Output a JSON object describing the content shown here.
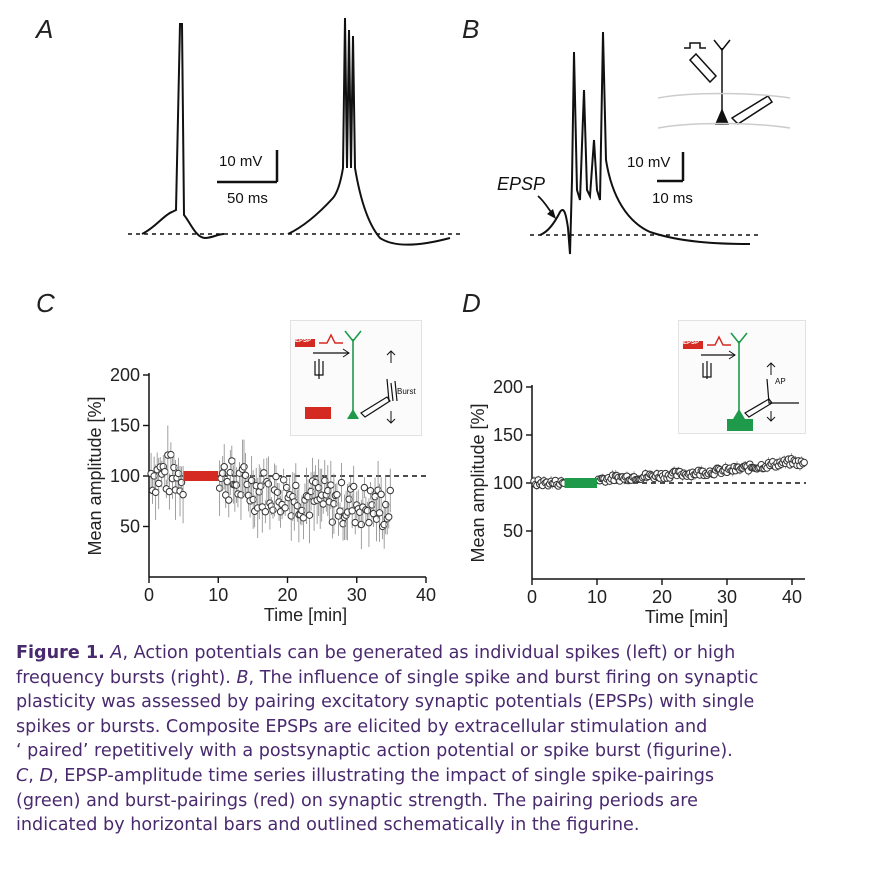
{
  "panels": {
    "A": {
      "letter": "A",
      "scale_v": "10 mV",
      "scale_t": "50 ms"
    },
    "B": {
      "letter": "B",
      "scale_v": "10 mV",
      "scale_t": "10 ms",
      "epsp_label": "EPSP"
    },
    "C": {
      "letter": "C",
      "figurine_label": "Burst",
      "figurine_epsp": "EPSP"
    },
    "D": {
      "letter": "D",
      "figurine_label": "AP",
      "figurine_epsp": "EPSP"
    }
  },
  "colors": {
    "burst_pairing": "#d42a22",
    "spike_pairing": "#1f9a4a",
    "caption_text": "#4a2a6e",
    "trace": "#111111"
  },
  "chart_data": [
    {
      "panel": "C",
      "type": "scatter",
      "xlabel": "Time [min]",
      "ylabel": "Mean amplitude [%]",
      "xlim": [
        0,
        40
      ],
      "ylim": [
        0,
        200
      ],
      "xticks": [
        0,
        10,
        20,
        30,
        40
      ],
      "yticks": [
        50,
        100,
        150,
        200
      ],
      "baseline": 100,
      "pairing_period": [
        5,
        10
      ],
      "pairing_label": "burst-pairing",
      "series_trend": {
        "x": [
          0,
          5,
          10,
          15,
          20,
          25,
          30,
          35
        ],
        "y": [
          103,
          100,
          100,
          87,
          83,
          75,
          72,
          67
        ]
      }
    },
    {
      "panel": "D",
      "type": "scatter",
      "xlabel": "Time [min]",
      "ylabel": "Mean amplitude [%]",
      "xlim": [
        0,
        42
      ],
      "ylim": [
        0,
        200
      ],
      "xticks": [
        0,
        10,
        20,
        30,
        40
      ],
      "yticks": [
        50,
        100,
        150,
        200
      ],
      "baseline": 100,
      "pairing_period": [
        5,
        10
      ],
      "pairing_label": "single spike-pairing",
      "series_trend": {
        "x": [
          0,
          5,
          10,
          20,
          30,
          40,
          42
        ],
        "y": [
          100,
          100,
          104,
          108,
          113,
          122,
          120
        ]
      }
    }
  ],
  "caption": {
    "fig_label": "Figure 1.",
    "line1_a": "A",
    "line1_b": ", Action potentials can be generated as individual spikes (left) or high",
    "line2": "frequency bursts (right). ",
    "line2_b": "B",
    "line2_c": ", The influence of single spike and burst firing on synaptic",
    "line3": "plasticity was assessed by pairing excitatory synaptic potentials (EPSPs) with single",
    "line4": "spikes or bursts. Composite EPSPs are elicited by extracellular stimulation and",
    "line5": "‘ paired’ repetitively with a postsynaptic action potential or spike burst (figurine).",
    "line6_a": "C",
    "line6_b": ", ",
    "line6_c": "D",
    "line6_d": ", EPSP-amplitude time series illustrating the impact of single spike-pairings",
    "line7": "(green) and burst-pairings (red) on synaptic strength. The pairing periods are",
    "line8": "indicated by horizontal bars and outlined schematically in the figurine."
  }
}
